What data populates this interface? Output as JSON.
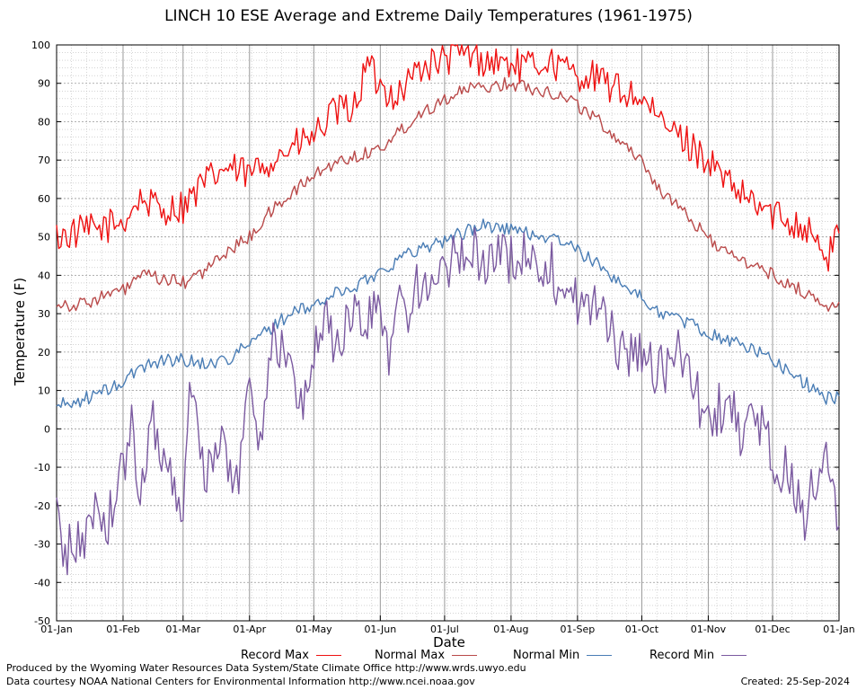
{
  "chart_data": {
    "type": "line",
    "title": "LINCH 10 ESE Average and Extreme Daily Temperatures (1961-1975)",
    "xlabel": "Date",
    "ylabel": "Temperature (F)",
    "ylim": [
      -50,
      100
    ],
    "yticks": [
      100,
      90,
      80,
      70,
      60,
      50,
      40,
      30,
      20,
      10,
      0,
      -10,
      -20,
      -30,
      -40,
      -50
    ],
    "xtick_labels": [
      "01-Jan",
      "01-Feb",
      "01-Mar",
      "01-Apr",
      "01-May",
      "01-Jun",
      "01-Jul",
      "01-Aug",
      "01-Sep",
      "01-Oct",
      "01-Nov",
      "01-Dec",
      "01-Jan"
    ],
    "xtick_days": [
      1,
      32,
      60,
      91,
      121,
      152,
      182,
      213,
      244,
      274,
      305,
      335,
      366
    ],
    "xlim_days": [
      1,
      366
    ],
    "grid": true,
    "legend_position": "bottom",
    "series": [
      {
        "name": "Record Max",
        "color": "#ee1111",
        "x": [
          1,
          10,
          20,
          32,
          40,
          50,
          60,
          70,
          80,
          91,
          100,
          110,
          121,
          130,
          140,
          146,
          152,
          160,
          170,
          182,
          190,
          200,
          213,
          220,
          230,
          240,
          244,
          250,
          260,
          274,
          280,
          290,
          305,
          315,
          325,
          335,
          345,
          355,
          360,
          366
        ],
        "y": [
          50,
          51,
          52,
          54,
          60,
          57,
          58,
          64,
          68,
          66,
          70,
          73,
          76,
          82,
          84,
          95,
          89,
          87,
          94,
          96,
          98,
          96,
          95,
          94,
          96,
          93,
          92,
          92,
          89,
          86,
          81,
          77,
          70,
          63,
          59,
          56,
          54,
          51,
          42,
          54
        ]
      },
      {
        "name": "Normal Max",
        "color": "#b94a4a",
        "x": [
          1,
          10,
          20,
          32,
          40,
          50,
          60,
          70,
          80,
          91,
          100,
          110,
          121,
          130,
          140,
          152,
          160,
          170,
          182,
          190,
          200,
          213,
          220,
          230,
          240,
          250,
          260,
          274,
          280,
          290,
          305,
          315,
          325,
          335,
          345,
          355,
          360,
          366
        ],
        "y": [
          33,
          32,
          34,
          36,
          40,
          39,
          38,
          41,
          46,
          50,
          56,
          61,
          66,
          69,
          71,
          73,
          77,
          82,
          86,
          88,
          89,
          90,
          89,
          88,
          86,
          82,
          77,
          70,
          64,
          58,
          50,
          45,
          43,
          40,
          37,
          34,
          31,
          34
        ]
      },
      {
        "name": "Normal Min",
        "color": "#4a7db5",
        "x": [
          1,
          10,
          20,
          32,
          40,
          50,
          60,
          70,
          80,
          91,
          100,
          110,
          121,
          130,
          140,
          152,
          160,
          170,
          182,
          190,
          200,
          213,
          220,
          230,
          240,
          250,
          260,
          274,
          280,
          290,
          305,
          315,
          325,
          335,
          345,
          355,
          360,
          366
        ],
        "y": [
          6,
          7,
          9,
          12,
          16,
          18,
          18,
          17,
          18,
          22,
          26,
          30,
          32,
          35,
          37,
          41,
          44,
          47,
          49,
          51,
          53,
          52,
          51,
          50,
          48,
          44,
          40,
          34,
          31,
          29,
          25,
          23,
          21,
          18,
          14,
          10,
          8,
          8
        ]
      },
      {
        "name": "Record Min",
        "color": "#7b5aa0",
        "x": [
          1,
          5,
          10,
          15,
          20,
          25,
          32,
          36,
          40,
          45,
          50,
          55,
          60,
          64,
          70,
          75,
          80,
          85,
          91,
          96,
          100,
          105,
          110,
          115,
          121,
          126,
          130,
          135,
          140,
          146,
          152,
          156,
          160,
          165,
          170,
          175,
          182,
          186,
          190,
          195,
          200,
          205,
          213,
          217,
          220,
          225,
          230,
          235,
          240,
          244,
          250,
          255,
          260,
          265,
          274,
          280,
          286,
          290,
          295,
          300,
          305,
          310,
          315,
          320,
          325,
          330,
          335,
          340,
          345,
          350,
          355,
          360,
          366
        ],
        "y": [
          -22,
          -33,
          -30,
          -28,
          -18,
          -25,
          -10,
          0,
          -20,
          5,
          -5,
          -15,
          -20,
          15,
          -10,
          -8,
          -5,
          -15,
          10,
          -2,
          20,
          22,
          15,
          5,
          20,
          30,
          22,
          25,
          30,
          27,
          33,
          20,
          36,
          30,
          38,
          34,
          40,
          44,
          44,
          46,
          45,
          43,
          45,
          46,
          45,
          43,
          44,
          38,
          37,
          33,
          32,
          30,
          25,
          20,
          20,
          15,
          15,
          20,
          18,
          8,
          2,
          5,
          8,
          -5,
          5,
          0,
          -8,
          -10,
          -15,
          -25,
          -12,
          -10,
          -22
        ]
      }
    ]
  }
}
